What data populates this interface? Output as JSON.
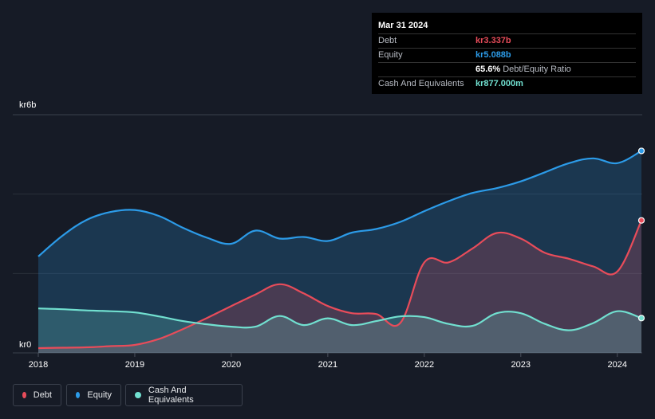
{
  "tooltip": {
    "date": "Mar 31 2024",
    "rows": [
      {
        "label": "Debt",
        "value": "kr3.337b",
        "color": "#e84c5a"
      },
      {
        "label": "Equity",
        "value": "kr5.088b",
        "color": "#2c9be8"
      },
      {
        "label": "",
        "value": "65.6%",
        "extra": "Debt/Equity Ratio",
        "color": "#ffffff"
      },
      {
        "label": "Cash And Equivalents",
        "value": "kr877.000m",
        "color": "#71e0d0"
      }
    ]
  },
  "legend": {
    "debt": "Debt",
    "equity": "Equity",
    "cash": "Cash And Equivalents"
  },
  "colors": {
    "debt": "#e84c5a",
    "equity": "#2c9be8",
    "cash": "#71e0d0",
    "background": "#161b26"
  },
  "chart_data": {
    "type": "area",
    "title": "",
    "xlabel": "",
    "ylabel": "",
    "y_unit_labels": {
      "top": "kr6b",
      "bottom": "kr0"
    },
    "ylim": [
      0,
      6
    ],
    "xlim": [
      2018.0,
      2024.25
    ],
    "x_ticks": [
      "2018",
      "2019",
      "2020",
      "2021",
      "2022",
      "2023",
      "2024"
    ],
    "gridlines": [
      0,
      2,
      4,
      6
    ],
    "series": [
      {
        "name": "Equity",
        "points": [
          [
            2018.0,
            2.43
          ],
          [
            2018.25,
            2.95
          ],
          [
            2018.5,
            3.35
          ],
          [
            2018.75,
            3.55
          ],
          [
            2019.0,
            3.6
          ],
          [
            2019.25,
            3.45
          ],
          [
            2019.5,
            3.15
          ],
          [
            2019.75,
            2.9
          ],
          [
            2020.0,
            2.75
          ],
          [
            2020.25,
            3.08
          ],
          [
            2020.5,
            2.88
          ],
          [
            2020.75,
            2.92
          ],
          [
            2021.0,
            2.82
          ],
          [
            2021.25,
            3.03
          ],
          [
            2021.5,
            3.12
          ],
          [
            2021.75,
            3.3
          ],
          [
            2022.0,
            3.57
          ],
          [
            2022.25,
            3.82
          ],
          [
            2022.5,
            4.03
          ],
          [
            2022.75,
            4.15
          ],
          [
            2023.0,
            4.32
          ],
          [
            2023.25,
            4.55
          ],
          [
            2023.5,
            4.78
          ],
          [
            2023.75,
            4.9
          ],
          [
            2024.0,
            4.78
          ],
          [
            2024.25,
            5.088
          ]
        ]
      },
      {
        "name": "Debt",
        "points": [
          [
            2018.0,
            0.12
          ],
          [
            2018.25,
            0.13
          ],
          [
            2018.5,
            0.14
          ],
          [
            2018.75,
            0.17
          ],
          [
            2019.0,
            0.2
          ],
          [
            2019.25,
            0.35
          ],
          [
            2019.5,
            0.6
          ],
          [
            2019.75,
            0.88
          ],
          [
            2020.0,
            1.18
          ],
          [
            2020.25,
            1.47
          ],
          [
            2020.5,
            1.73
          ],
          [
            2020.75,
            1.5
          ],
          [
            2021.0,
            1.18
          ],
          [
            2021.25,
            1.0
          ],
          [
            2021.5,
            0.98
          ],
          [
            2021.75,
            0.75
          ],
          [
            2022.0,
            2.28
          ],
          [
            2022.25,
            2.28
          ],
          [
            2022.5,
            2.63
          ],
          [
            2022.75,
            3.02
          ],
          [
            2023.0,
            2.88
          ],
          [
            2023.25,
            2.52
          ],
          [
            2023.5,
            2.37
          ],
          [
            2023.75,
            2.18
          ],
          [
            2024.0,
            2.05
          ],
          [
            2024.25,
            3.337
          ]
        ]
      },
      {
        "name": "Cash And Equivalents",
        "points": [
          [
            2018.0,
            1.12
          ],
          [
            2018.25,
            1.1
          ],
          [
            2018.5,
            1.07
          ],
          [
            2018.75,
            1.05
          ],
          [
            2019.0,
            1.02
          ],
          [
            2019.25,
            0.92
          ],
          [
            2019.5,
            0.8
          ],
          [
            2019.75,
            0.72
          ],
          [
            2020.0,
            0.66
          ],
          [
            2020.25,
            0.66
          ],
          [
            2020.5,
            0.93
          ],
          [
            2020.75,
            0.7
          ],
          [
            2021.0,
            0.87
          ],
          [
            2021.25,
            0.7
          ],
          [
            2021.5,
            0.8
          ],
          [
            2021.75,
            0.92
          ],
          [
            2022.0,
            0.9
          ],
          [
            2022.25,
            0.73
          ],
          [
            2022.5,
            0.68
          ],
          [
            2022.75,
            1.0
          ],
          [
            2023.0,
            1.0
          ],
          [
            2023.25,
            0.73
          ],
          [
            2023.5,
            0.57
          ],
          [
            2023.75,
            0.75
          ],
          [
            2024.0,
            1.05
          ],
          [
            2024.25,
            0.877
          ]
        ]
      }
    ]
  }
}
